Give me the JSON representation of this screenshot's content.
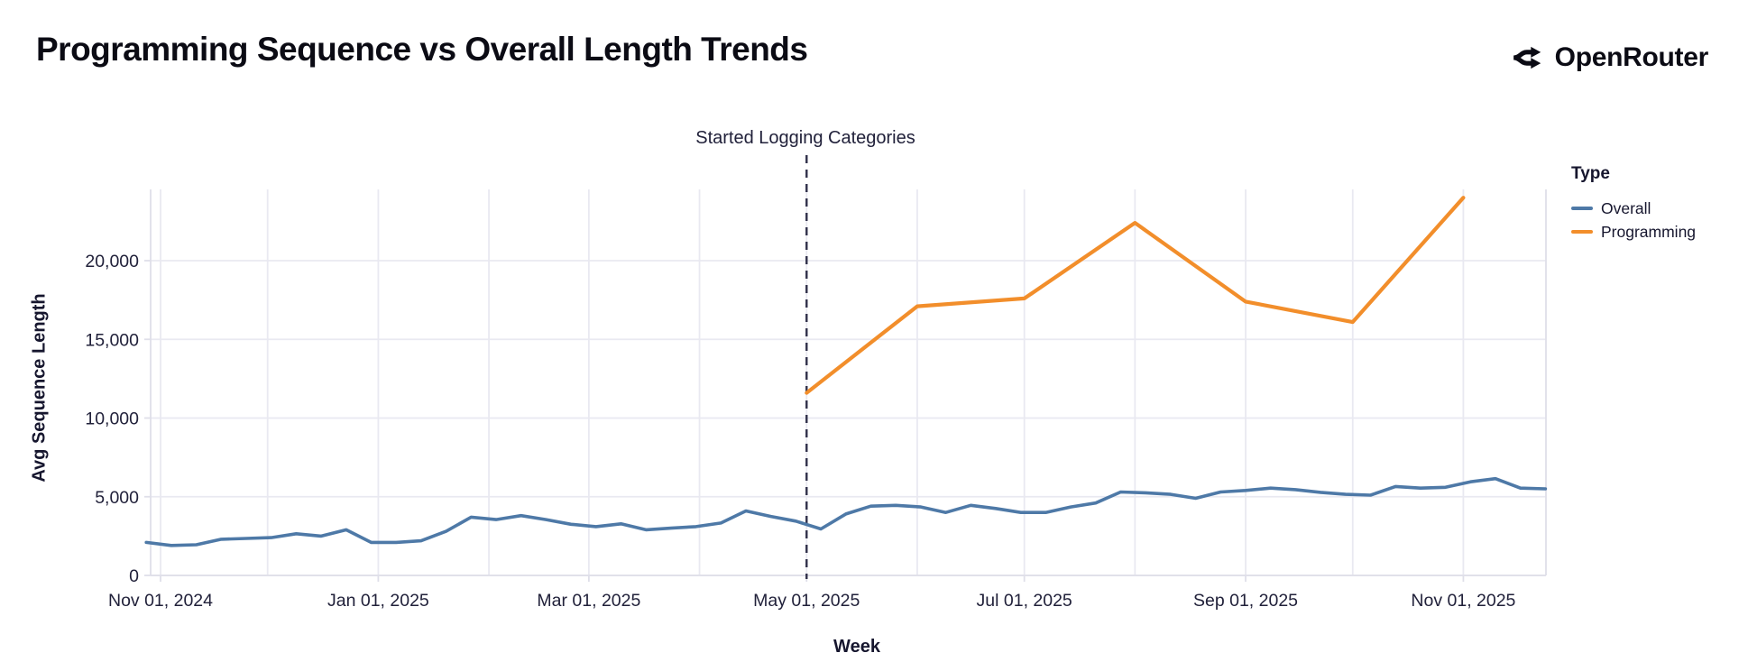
{
  "header": {
    "title": "Programming Sequence vs Overall Length Trends",
    "brand": "OpenRouter"
  },
  "chart_data": {
    "type": "line",
    "title": "Programming Sequence vs Overall Length Trends",
    "xlabel": "Week",
    "ylabel": "Avg Sequence Length",
    "legend_title": "Type",
    "legend_position": "right",
    "grid": true,
    "ylim": [
      0,
      24500
    ],
    "annotation": {
      "text": "Started Logging Categories",
      "date": "2025-05-01"
    },
    "colors": {
      "overall": "#4e79a7",
      "programming": "#f28e2b",
      "grid": "#e9e9f1",
      "border": "#dfdfe9",
      "tick_text": "#21213a",
      "dashed_line": "#30304a"
    },
    "y_ticks": [
      {
        "value": 0,
        "label": "0"
      },
      {
        "value": 5000,
        "label": "5,000"
      },
      {
        "value": 10000,
        "label": "10,000"
      },
      {
        "value": 15000,
        "label": "15,000"
      },
      {
        "value": 20000,
        "label": "20,000"
      }
    ],
    "x_ticks": [
      {
        "date": "2024-11-01",
        "label": "Nov 01, 2024"
      },
      {
        "date": "2025-01-01",
        "label": "Jan 01, 2025"
      },
      {
        "date": "2025-03-01",
        "label": "Mar 01, 2025"
      },
      {
        "date": "2025-05-01",
        "label": "May 01, 2025"
      },
      {
        "date": "2025-07-01",
        "label": "Jul 01, 2025"
      },
      {
        "date": "2025-09-01",
        "label": "Sep 01, 2025"
      },
      {
        "date": "2025-11-01",
        "label": "Nov 01, 2025"
      }
    ],
    "x_gridline_dates": [
      "2024-11-01",
      "2024-12-01",
      "2025-01-01",
      "2025-02-01",
      "2025-03-01",
      "2025-04-01",
      "2025-05-01",
      "2025-06-01",
      "2025-07-01",
      "2025-08-01",
      "2025-09-01",
      "2025-10-01",
      "2025-11-01"
    ],
    "series": [
      {
        "name": "Overall",
        "color_key": "overall",
        "points": [
          [
            "2024-10-28",
            2100
          ],
          [
            "2024-11-04",
            1900
          ],
          [
            "2024-11-11",
            1950
          ],
          [
            "2024-11-18",
            2300
          ],
          [
            "2024-11-25",
            2350
          ],
          [
            "2024-12-02",
            2400
          ],
          [
            "2024-12-09",
            2650
          ],
          [
            "2024-12-16",
            2500
          ],
          [
            "2024-12-23",
            2900
          ],
          [
            "2024-12-30",
            2100
          ],
          [
            "2025-01-06",
            2100
          ],
          [
            "2025-01-13",
            2200
          ],
          [
            "2025-01-20",
            2800
          ],
          [
            "2025-01-27",
            3700
          ],
          [
            "2025-02-03",
            3550
          ],
          [
            "2025-02-10",
            3800
          ],
          [
            "2025-02-17",
            3550
          ],
          [
            "2025-02-24",
            3250
          ],
          [
            "2025-03-03",
            3100
          ],
          [
            "2025-03-10",
            3280
          ],
          [
            "2025-03-17",
            2900
          ],
          [
            "2025-03-24",
            3000
          ],
          [
            "2025-03-31",
            3100
          ],
          [
            "2025-04-07",
            3330
          ],
          [
            "2025-04-14",
            4100
          ],
          [
            "2025-04-21",
            3750
          ],
          [
            "2025-04-28",
            3450
          ],
          [
            "2025-05-05",
            2950
          ],
          [
            "2025-05-12",
            3900
          ],
          [
            "2025-05-19",
            4400
          ],
          [
            "2025-05-26",
            4450
          ],
          [
            "2025-06-02",
            4350
          ],
          [
            "2025-06-09",
            4000
          ],
          [
            "2025-06-16",
            4450
          ],
          [
            "2025-06-23",
            4250
          ],
          [
            "2025-06-30",
            4000
          ],
          [
            "2025-07-07",
            4000
          ],
          [
            "2025-07-14",
            4350
          ],
          [
            "2025-07-21",
            4600
          ],
          [
            "2025-07-28",
            5300
          ],
          [
            "2025-08-04",
            5250
          ],
          [
            "2025-08-11",
            5150
          ],
          [
            "2025-08-18",
            4900
          ],
          [
            "2025-08-25",
            5300
          ],
          [
            "2025-09-01",
            5400
          ],
          [
            "2025-09-08",
            5550
          ],
          [
            "2025-09-15",
            5450
          ],
          [
            "2025-09-22",
            5280
          ],
          [
            "2025-09-29",
            5150
          ],
          [
            "2025-10-06",
            5100
          ],
          [
            "2025-10-13",
            5650
          ],
          [
            "2025-10-20",
            5550
          ],
          [
            "2025-10-27",
            5600
          ],
          [
            "2025-11-03",
            5950
          ],
          [
            "2025-11-10",
            6150
          ],
          [
            "2025-11-17",
            5550
          ],
          [
            "2025-11-24",
            5500
          ]
        ]
      },
      {
        "name": "Programming",
        "color_key": "programming",
        "points": [
          [
            "2025-05-01",
            11600
          ],
          [
            "2025-06-01",
            17100
          ],
          [
            "2025-07-01",
            17600
          ],
          [
            "2025-08-01",
            22400
          ],
          [
            "2025-09-01",
            17400
          ],
          [
            "2025-10-01",
            16100
          ],
          [
            "2025-11-01",
            24000
          ]
        ]
      }
    ]
  }
}
